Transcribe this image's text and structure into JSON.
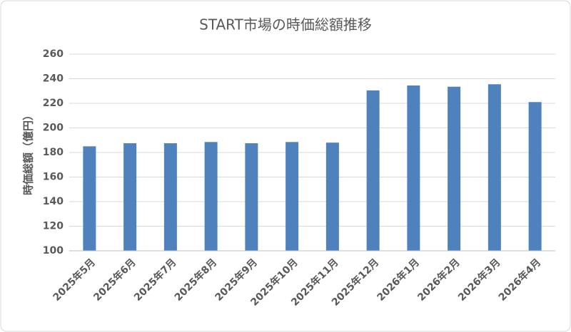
{
  "chart_data": {
    "type": "bar",
    "title": "START市場の時価総額推移",
    "y_label": "時価総額（億円）",
    "categories": [
      "2025年5月",
      "2025年6月",
      "2025年7月",
      "2025年8月",
      "2025年9月",
      "2025年10月",
      "2025年11月",
      "2025年12月",
      "2026年1月",
      "2026年2月",
      "2026年3月",
      "2026年4月"
    ],
    "values": [
      185,
      187.5,
      187.5,
      188.5,
      187.5,
      188.5,
      188,
      230.5,
      234.5,
      233.5,
      235.5,
      221
    ],
    "color": "#4f81bd",
    "ylim": [
      100,
      260
    ],
    "yticks": [
      100,
      120,
      140,
      160,
      180,
      200,
      220,
      240,
      260
    ],
    "grid": true
  }
}
